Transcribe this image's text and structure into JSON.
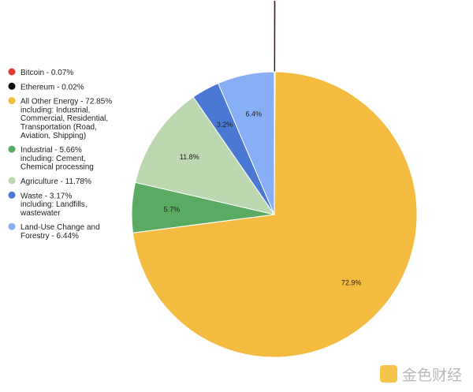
{
  "chart_data": {
    "type": "pie",
    "title": "",
    "legend_position": "left",
    "slices": [
      {
        "name": "Bitcoin - 0.07%",
        "value": 0.07,
        "color": "#e53935",
        "label": ""
      },
      {
        "name": "Ethereum - 0.02%",
        "value": 0.02,
        "color": "#111111",
        "label": ""
      },
      {
        "name": "All Other Energy - 72.85% including: Industrial, Commercial, Residential, Transportation (Road, Aviation, Shipping)",
        "legend_lines": [
          "All Other Energy - 72.85%",
          "including: Industrial,",
          "Commercial, Residential,",
          "Transportation (Road,",
          "Aviation, Shipping)"
        ],
        "value": 72.85,
        "color": "#f4bb41",
        "label": "72.9%"
      },
      {
        "name": "Industrial - 5.66% including: Cement, Chemical processing",
        "legend_lines": [
          "Industrial - 5.66%",
          "including: Cement,",
          "Chemical processing"
        ],
        "value": 5.66,
        "color": "#5aab61",
        "label": "5.7%"
      },
      {
        "name": "Agriculture - 11.78%",
        "value": 11.78,
        "color": "#bcd8b0",
        "label": "11.8%"
      },
      {
        "name": "Waste - 3.17% including: Landfills, wastewater",
        "legend_lines": [
          "Waste - 3.17%",
          "including: Landfills,",
          "wastewater"
        ],
        "value": 3.17,
        "color": "#4a78d4",
        "label": "3.2%"
      },
      {
        "name": "Land-Use Change and Forestry - 6.44%",
        "legend_lines": [
          "Land-Use Change and",
          "Forestry - 6.44%"
        ],
        "value": 6.44,
        "color": "#88aef5",
        "label": "6.4%"
      }
    ]
  },
  "watermark": {
    "text": "金色财经",
    "color": "#f4c54a"
  }
}
